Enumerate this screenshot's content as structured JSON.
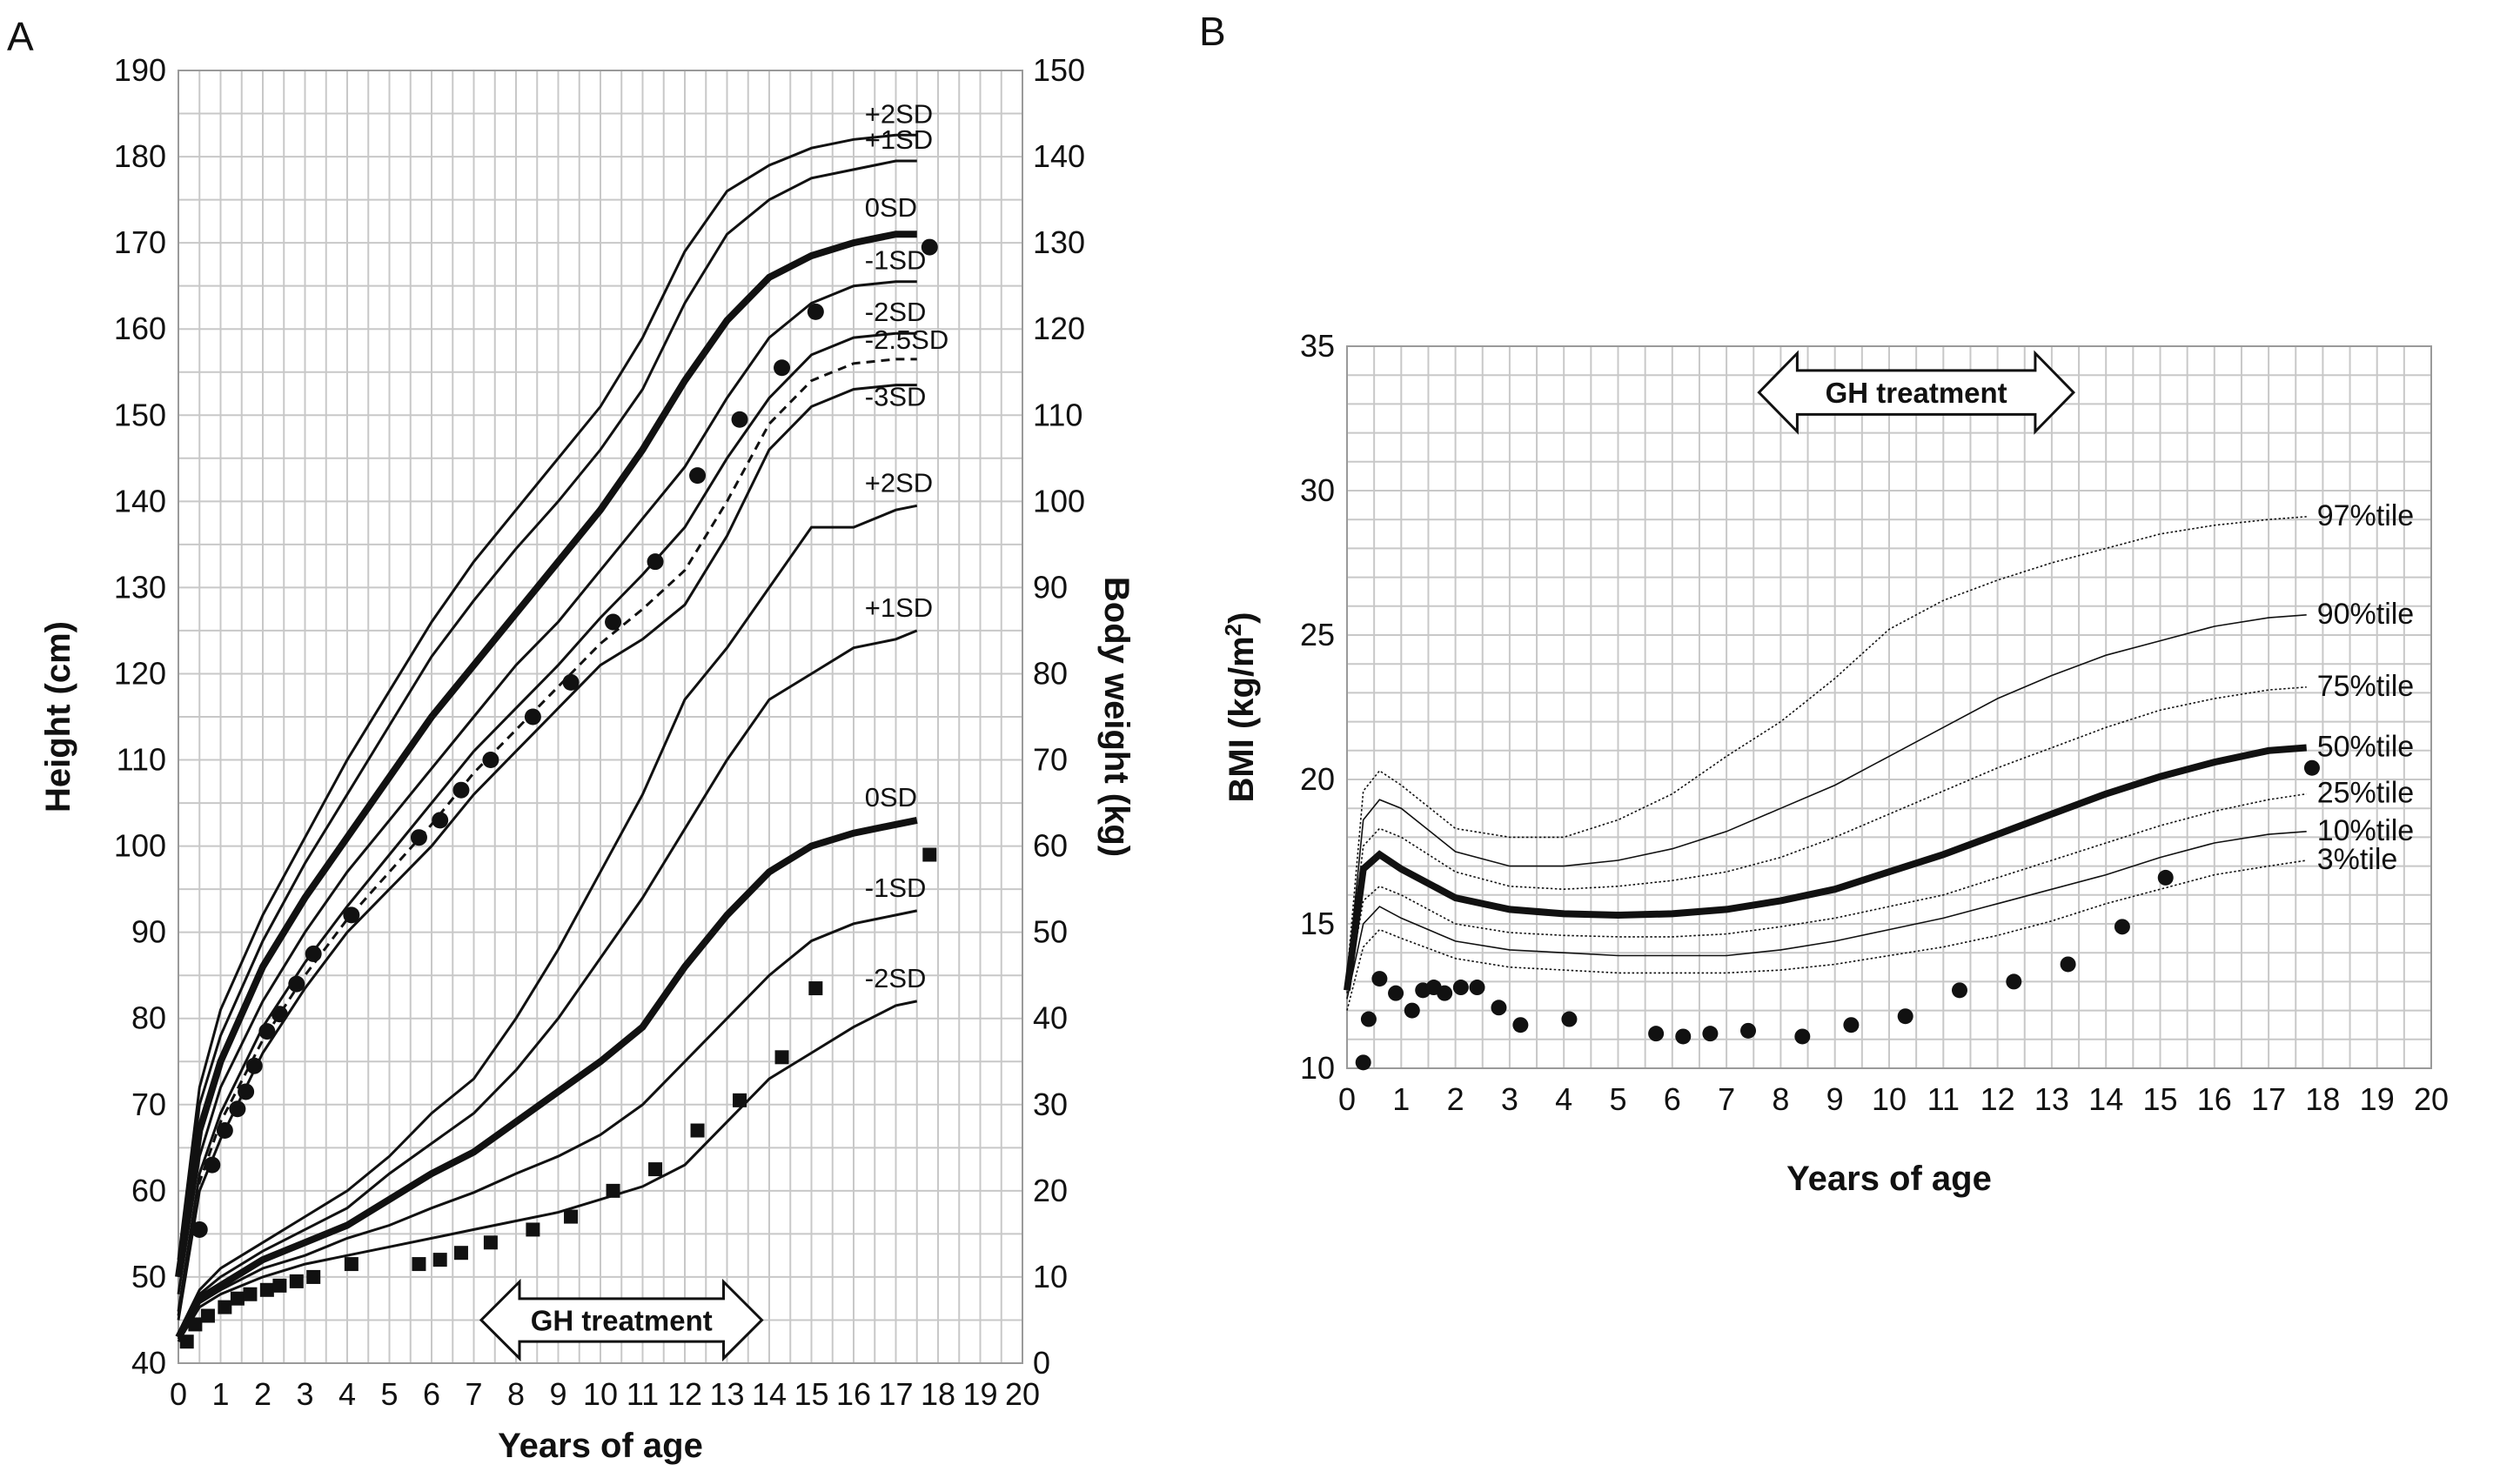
{
  "chart_data": [
    {
      "panel": "A",
      "type": "line",
      "xlabel": "Years of age",
      "ylabel": "Height (cm)",
      "y2label": "Body weight (kg)",
      "xlim": [
        0,
        20
      ],
      "ylim": [
        40,
        190
      ],
      "y2lim": [
        0,
        150
      ],
      "x_ticks": [
        0,
        1,
        2,
        3,
        4,
        5,
        6,
        7,
        8,
        9,
        10,
        11,
        12,
        13,
        14,
        15,
        16,
        17,
        18,
        19,
        20
      ],
      "y_ticks": [
        40,
        50,
        60,
        70,
        80,
        90,
        100,
        110,
        120,
        130,
        140,
        150,
        160,
        170,
        180,
        190
      ],
      "y2_ticks": [
        0,
        10,
        20,
        30,
        40,
        50,
        60,
        70,
        80,
        90,
        100,
        110,
        120,
        130,
        140,
        150
      ],
      "height_curves": [
        {
          "label": "+2SD",
          "style": "solid",
          "x": [
            0,
            0.5,
            1,
            2,
            3,
            4,
            5,
            6,
            7,
            8,
            9,
            10,
            11,
            12,
            13,
            14,
            15,
            16,
            17,
            17.5
          ],
          "y": [
            52,
            72,
            81,
            92,
            101,
            110,
            118,
            126,
            133,
            139,
            145,
            151,
            159,
            169,
            176,
            179,
            181,
            182,
            182.5,
            182.5
          ]
        },
        {
          "label": "+1SD",
          "style": "solid",
          "x": [
            0,
            0.5,
            1,
            2,
            3,
            4,
            5,
            6,
            7,
            8,
            9,
            10,
            11,
            12,
            13,
            14,
            15,
            16,
            17,
            17.5
          ],
          "y": [
            51,
            70,
            78,
            89,
            98,
            106,
            114,
            122,
            128.5,
            134.5,
            140,
            146,
            153,
            163,
            171,
            175,
            177.5,
            178.5,
            179.5,
            179.5
          ]
        },
        {
          "label": "0SD",
          "style": "bold",
          "x": [
            0,
            0.5,
            1,
            2,
            3,
            4,
            5,
            6,
            7,
            8,
            9,
            10,
            11,
            12,
            13,
            14,
            15,
            16,
            17,
            17.5
          ],
          "y": [
            50,
            67,
            75,
            86,
            94,
            101,
            108,
            115,
            121,
            127,
            133,
            139,
            146,
            154,
            161,
            166,
            168.5,
            170,
            171,
            171
          ]
        },
        {
          "label": "-1SD",
          "style": "solid",
          "x": [
            0,
            0.5,
            1,
            2,
            3,
            4,
            5,
            6,
            7,
            8,
            9,
            10,
            11,
            12,
            13,
            14,
            15,
            16,
            17,
            17.5
          ],
          "y": [
            48,
            64,
            72,
            82,
            90,
            97,
            103,
            109,
            115,
            121,
            126,
            132,
            138,
            144,
            152,
            159,
            163,
            165,
            165.5,
            165.5
          ]
        },
        {
          "label": "-2SD",
          "style": "solid",
          "x": [
            0,
            0.5,
            1,
            2,
            3,
            4,
            5,
            6,
            7,
            8,
            9,
            10,
            11,
            12,
            13,
            14,
            15,
            16,
            17,
            17.5
          ],
          "y": [
            46,
            62,
            69,
            79,
            86.5,
            93,
            99,
            105,
            111,
            116,
            121,
            126.5,
            131.5,
            137,
            145,
            152,
            157,
            159,
            159.5,
            159.5
          ]
        },
        {
          "label": "-2.5SD",
          "style": "dashed",
          "x": [
            0,
            0.5,
            1,
            2,
            3,
            4,
            5,
            6,
            7,
            8,
            9,
            10,
            11,
            12,
            13,
            14,
            15,
            16,
            17,
            17.5
          ],
          "y": [
            45.5,
            61,
            68,
            77.5,
            85,
            91.5,
            97,
            102.5,
            108.5,
            113.5,
            118.5,
            123.5,
            127.5,
            132,
            140,
            149,
            154,
            156,
            156.5,
            156.5
          ]
        },
        {
          "label": "-3SD",
          "style": "solid",
          "x": [
            0,
            0.5,
            1,
            2,
            3,
            4,
            5,
            6,
            7,
            8,
            9,
            10,
            11,
            12,
            13,
            14,
            15,
            16,
            17,
            17.5
          ],
          "y": [
            45,
            60,
            66,
            76,
            83.5,
            90,
            95,
            100,
            106,
            111,
            116,
            121,
            124,
            128,
            136,
            146,
            151,
            153,
            153.5,
            153.5
          ]
        }
      ],
      "weight_curves": [
        {
          "label": "+2SD",
          "style": "solid",
          "x": [
            0,
            0.5,
            1,
            2,
            3,
            4,
            5,
            6,
            7,
            8,
            9,
            10,
            11,
            12,
            13,
            14,
            15,
            16,
            17,
            17.5
          ],
          "y": [
            3.5,
            8.5,
            11,
            14,
            17,
            20,
            24,
            29,
            33,
            40,
            48,
            57,
            66,
            77,
            83,
            90,
            97,
            97,
            99,
            99.5
          ]
        },
        {
          "label": "+1SD",
          "style": "solid",
          "x": [
            0,
            0.5,
            1,
            2,
            3,
            4,
            5,
            6,
            7,
            8,
            9,
            10,
            11,
            12,
            13,
            14,
            15,
            16,
            17,
            17.5
          ],
          "y": [
            3.3,
            8,
            10,
            13,
            15.5,
            18,
            22,
            25.5,
            29,
            34,
            40,
            47,
            54,
            62,
            70,
            77,
            80,
            83,
            84,
            85
          ]
        },
        {
          "label": "0SD",
          "style": "bold",
          "x": [
            0,
            0.5,
            1,
            2,
            3,
            4,
            5,
            6,
            7,
            8,
            9,
            10,
            11,
            12,
            13,
            14,
            15,
            16,
            17,
            17.5
          ],
          "y": [
            3,
            7.5,
            9,
            12,
            14,
            16,
            19,
            22,
            24.5,
            28,
            31.5,
            35,
            39,
            46,
            52,
            57,
            60,
            61.5,
            62.5,
            63
          ]
        },
        {
          "label": "-1SD",
          "style": "solid",
          "x": [
            0,
            0.5,
            1,
            2,
            3,
            4,
            5,
            6,
            7,
            8,
            9,
            10,
            11,
            12,
            13,
            14,
            15,
            16,
            17,
            17.5
          ],
          "y": [
            2.8,
            7,
            8.5,
            11,
            12.5,
            14.5,
            16,
            18,
            19.8,
            22,
            24,
            26.5,
            30,
            35,
            40,
            45,
            49,
            51,
            52,
            52.5
          ]
        },
        {
          "label": "-2SD",
          "style": "solid",
          "x": [
            0,
            0.5,
            1,
            2,
            3,
            4,
            5,
            6,
            7,
            8,
            9,
            10,
            11,
            12,
            13,
            14,
            15,
            16,
            17,
            17.5
          ],
          "y": [
            2.5,
            6.5,
            8,
            10,
            11.5,
            12.5,
            13.5,
            14.5,
            15.5,
            16.5,
            17.5,
            19,
            20.5,
            23,
            28,
            33,
            36,
            39,
            41.5,
            42
          ]
        }
      ],
      "height_points": {
        "x": [
          0.5,
          0.8,
          1.1,
          1.4,
          1.6,
          1.8,
          2.1,
          2.4,
          2.8,
          3.2,
          4.1,
          5.7,
          6.2,
          6.7,
          7.4,
          8.4,
          9.3,
          10.3,
          11.3,
          12.3,
          13.3,
          14.3,
          15.1,
          17.8
        ],
        "y": [
          55.5,
          63,
          67,
          69.5,
          71.5,
          74.5,
          78.5,
          80.5,
          84,
          87.5,
          92,
          101,
          103,
          106.5,
          110,
          115,
          119,
          126,
          133,
          143,
          149.5,
          155.5,
          162,
          169.5
        ]
      },
      "weight_points": {
        "x": [
          0.2,
          0.4,
          0.7,
          1.1,
          1.4,
          1.7,
          2.1,
          2.4,
          2.8,
          3.2,
          4.1,
          5.7,
          6.2,
          6.7,
          7.4,
          8.4,
          9.3,
          10.3,
          11.3,
          12.3,
          13.3,
          14.3,
          15.1,
          17.8
        ],
        "y": [
          2.5,
          4.5,
          5.5,
          6.5,
          7.5,
          8,
          8.5,
          9,
          9.5,
          10,
          11.5,
          11.5,
          12,
          12.8,
          14,
          15.5,
          17,
          20,
          22.5,
          27,
          30.5,
          35.5,
          43.5,
          59
        ]
      },
      "annotations": [
        "GH treatment"
      ],
      "gh_treatment_range": [
        8,
        13
      ]
    },
    {
      "panel": "B",
      "type": "line",
      "xlabel": "Years of age",
      "ylabel": "BMI (kg/m",
      "ylabel_sup": "2",
      "ylabel_close": ")",
      "xlim": [
        0,
        20
      ],
      "ylim": [
        10,
        35
      ],
      "x_ticks": [
        0,
        1,
        2,
        3,
        4,
        5,
        6,
        7,
        8,
        9,
        10,
        11,
        12,
        13,
        14,
        15,
        16,
        17,
        18,
        19,
        20
      ],
      "y_ticks": [
        10,
        15,
        20,
        25,
        30,
        35
      ],
      "percentile_curves": [
        {
          "label": "97%tile",
          "style": "dotted",
          "x": [
            0,
            0.3,
            0.6,
            1,
            2,
            3,
            4,
            5,
            6,
            7,
            8,
            9,
            10,
            11,
            12,
            13,
            14,
            15,
            16,
            17,
            17.7
          ],
          "y": [
            13.2,
            19.6,
            20.3,
            19.8,
            18.3,
            18.0,
            18.0,
            18.6,
            19.5,
            20.8,
            22.0,
            23.5,
            25.2,
            26.2,
            26.9,
            27.5,
            28.0,
            28.5,
            28.8,
            29.0,
            29.1
          ]
        },
        {
          "label": "90%tile",
          "style": "solid",
          "x": [
            0,
            0.3,
            0.6,
            1,
            2,
            3,
            4,
            5,
            6,
            7,
            8,
            9,
            10,
            11,
            12,
            13,
            14,
            15,
            16,
            17,
            17.7
          ],
          "y": [
            13.0,
            18.6,
            19.3,
            19.0,
            17.5,
            17.0,
            17.0,
            17.2,
            17.6,
            18.2,
            19.0,
            19.8,
            20.8,
            21.8,
            22.8,
            23.6,
            24.3,
            24.8,
            25.3,
            25.6,
            25.7
          ]
        },
        {
          "label": "75%tile",
          "style": "dotted",
          "x": [
            0,
            0.3,
            0.6,
            1,
            2,
            3,
            4,
            5,
            6,
            7,
            8,
            9,
            10,
            11,
            12,
            13,
            14,
            15,
            16,
            17,
            17.7
          ],
          "y": [
            12.9,
            17.7,
            18.3,
            18.0,
            16.8,
            16.3,
            16.2,
            16.3,
            16.5,
            16.8,
            17.3,
            18.0,
            18.8,
            19.6,
            20.4,
            21.1,
            21.8,
            22.4,
            22.8,
            23.1,
            23.2
          ]
        },
        {
          "label": "50%tile",
          "style": "bold",
          "x": [
            0,
            0.3,
            0.6,
            1,
            2,
            3,
            4,
            5,
            6,
            7,
            8,
            9,
            10,
            11,
            12,
            13,
            14,
            15,
            16,
            17,
            17.7
          ],
          "y": [
            12.7,
            16.9,
            17.4,
            16.9,
            15.9,
            15.5,
            15.35,
            15.3,
            15.35,
            15.5,
            15.8,
            16.2,
            16.8,
            17.4,
            18.1,
            18.8,
            19.5,
            20.1,
            20.6,
            21.0,
            21.1
          ]
        },
        {
          "label": "25%tile",
          "style": "dotted",
          "x": [
            0,
            0.3,
            0.6,
            1,
            2,
            3,
            4,
            5,
            6,
            7,
            8,
            9,
            10,
            11,
            12,
            13,
            14,
            15,
            16,
            17,
            17.7
          ],
          "y": [
            12.6,
            15.8,
            16.3,
            16.0,
            15.0,
            14.7,
            14.6,
            14.55,
            14.55,
            14.65,
            14.9,
            15.2,
            15.6,
            16.0,
            16.6,
            17.2,
            17.8,
            18.4,
            18.9,
            19.3,
            19.5
          ]
        },
        {
          "label": "10%tile",
          "style": "solid",
          "x": [
            0,
            0.3,
            0.6,
            1,
            2,
            3,
            4,
            5,
            6,
            7,
            8,
            9,
            10,
            11,
            12,
            13,
            14,
            15,
            16,
            17,
            17.7
          ],
          "y": [
            12.4,
            15.0,
            15.6,
            15.2,
            14.4,
            14.1,
            14.0,
            13.9,
            13.9,
            13.9,
            14.1,
            14.4,
            14.8,
            15.2,
            15.7,
            16.2,
            16.7,
            17.3,
            17.8,
            18.1,
            18.2
          ]
        },
        {
          "label": "3%tile",
          "style": "dotted",
          "x": [
            0,
            0.3,
            0.6,
            1,
            2,
            3,
            4,
            5,
            6,
            7,
            8,
            9,
            10,
            11,
            12,
            13,
            14,
            15,
            16,
            17,
            17.7
          ],
          "y": [
            12.0,
            14.2,
            14.8,
            14.5,
            13.8,
            13.5,
            13.4,
            13.3,
            13.3,
            13.3,
            13.4,
            13.6,
            13.9,
            14.2,
            14.6,
            15.1,
            15.7,
            16.2,
            16.7,
            17.0,
            17.2
          ]
        }
      ],
      "bmi_points": {
        "x": [
          0.3,
          0.4,
          0.6,
          0.9,
          1.2,
          1.4,
          1.6,
          1.8,
          2.1,
          2.4,
          2.8,
          3.2,
          4.1,
          5.7,
          6.2,
          6.7,
          7.4,
          8.4,
          9.3,
          10.3,
          11.3,
          12.3,
          13.3,
          14.3,
          15.1,
          17.8
        ],
        "y": [
          10.2,
          11.7,
          13.1,
          12.6,
          12.0,
          12.7,
          12.8,
          12.6,
          12.8,
          12.8,
          12.1,
          11.5,
          11.7,
          11.2,
          11.1,
          11.2,
          11.3,
          11.1,
          11.5,
          11.8,
          12.7,
          13.0,
          13.6,
          14.9,
          16.6,
          20.4
        ]
      },
      "annotations": [
        "GH treatment"
      ],
      "gh_treatment_range": [
        8,
        13
      ]
    }
  ],
  "labels": {
    "panel_a": "A",
    "panel_b": "B",
    "gh_treatment": "GH treatment"
  }
}
